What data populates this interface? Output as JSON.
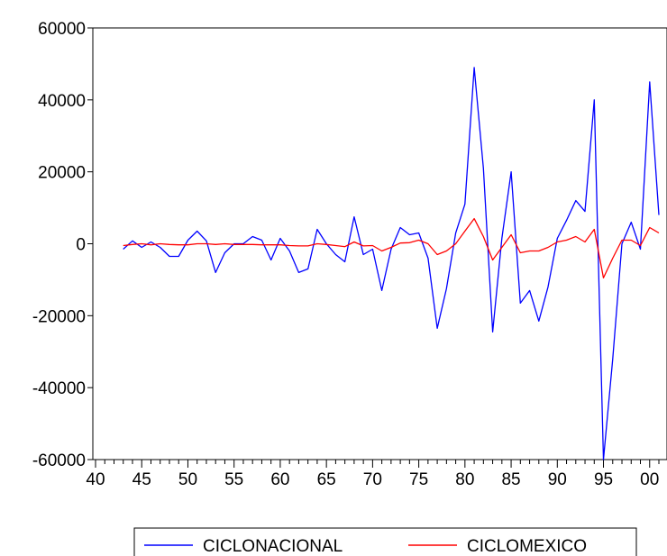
{
  "chart_data": {
    "type": "line",
    "title": "",
    "xlabel": "",
    "ylabel": "",
    "xlim": [
      1940,
      2003
    ],
    "ylim": [
      -60000,
      60000
    ],
    "grid": false,
    "legend_position": "bottom",
    "y_ticks": [
      60000,
      40000,
      20000,
      0,
      -20000,
      -40000,
      -60000
    ],
    "y_tick_labels": [
      "60000",
      "40000",
      "20000",
      "0",
      "-20000",
      "-40000",
      "-60000"
    ],
    "x_ticks": [
      1940,
      1945,
      1950,
      1955,
      1960,
      1965,
      1970,
      1975,
      1980,
      1985,
      1990,
      1995,
      2000
    ],
    "x_tick_labels": [
      "40",
      "45",
      "50",
      "55",
      "60",
      "65",
      "70",
      "75",
      "80",
      "85",
      "90",
      "95",
      "00"
    ],
    "x": [
      1943,
      1944,
      1945,
      1946,
      1947,
      1948,
      1949,
      1950,
      1951,
      1952,
      1953,
      1954,
      1955,
      1956,
      1957,
      1958,
      1959,
      1960,
      1961,
      1962,
      1963,
      1964,
      1965,
      1966,
      1967,
      1968,
      1969,
      1970,
      1971,
      1972,
      1973,
      1974,
      1975,
      1976,
      1977,
      1978,
      1979,
      1980,
      1981,
      1982,
      1983,
      1984,
      1985,
      1986,
      1987,
      1988,
      1989,
      1990,
      1991,
      1992,
      1993,
      1994,
      1995,
      1996,
      1997,
      1998,
      1999,
      2000,
      2001
    ],
    "series": [
      {
        "name": "CICLONACIONAL",
        "color": "#0000ff",
        "values": [
          -1500,
          800,
          -1000,
          500,
          -1000,
          -3500,
          -3500,
          1000,
          3500,
          800,
          -8000,
          -2500,
          0,
          0,
          2000,
          1000,
          -4500,
          1500,
          -2000,
          -8000,
          -7000,
          4000,
          0,
          -3000,
          -5000,
          7500,
          -3000,
          -1500,
          -13000,
          -1500,
          4500,
          2500,
          3000,
          -4000,
          -23500,
          -12500,
          3000,
          11000,
          49000,
          21000,
          -24500,
          1500,
          20000,
          -16500,
          -13000,
          -21500,
          -12000,
          1500,
          6500,
          12000,
          9000,
          40000,
          -60000,
          -32000,
          0,
          6000,
          -1500,
          45000,
          8000
        ]
      },
      {
        "name": "CICLOMEXICO",
        "color": "#ff0000",
        "values": [
          -500,
          -200,
          0,
          -300,
          0,
          -200,
          -300,
          -300,
          0,
          0,
          -200,
          0,
          -200,
          -200,
          -200,
          -300,
          -300,
          -300,
          -500,
          -600,
          -600,
          0,
          -200,
          -500,
          -800,
          500,
          -600,
          -500,
          -2000,
          -1000,
          200,
          300,
          1000,
          0,
          -3000,
          -2000,
          0,
          3500,
          7000,
          2000,
          -4500,
          -1000,
          2500,
          -2500,
          -2000,
          -2000,
          -1000,
          500,
          1000,
          2000,
          500,
          4000,
          -9500,
          -4000,
          1000,
          1000,
          -500,
          4500,
          3000
        ]
      }
    ]
  }
}
